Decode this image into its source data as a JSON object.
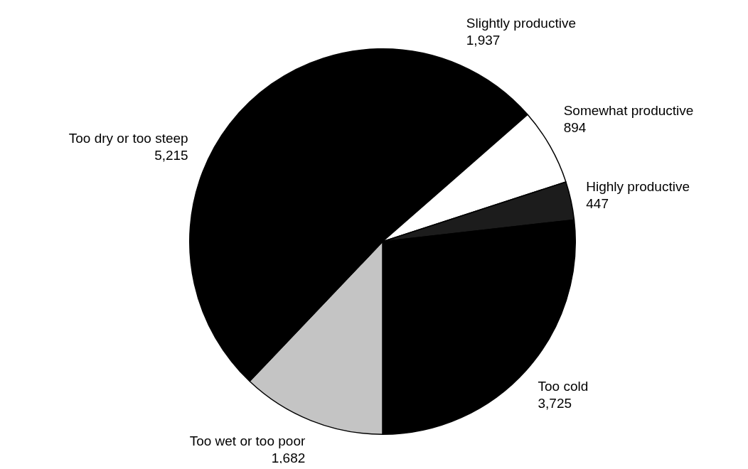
{
  "chart_data": {
    "type": "pie",
    "categories": [
      "Slightly productive",
      "Somewhat productive",
      "Highly productive",
      "Too cold",
      "Too wet or too poor",
      "Too dry or too steep"
    ],
    "values": [
      1937,
      894,
      447,
      3725,
      1682,
      5215
    ],
    "colors": [
      "#000000",
      "#ffffff",
      "#1c1c1c",
      "#000000",
      "#c4c4c4",
      "#000000"
    ],
    "value_labels": [
      "1,937",
      "894",
      "447",
      "3,725",
      "1,682",
      "5,215"
    ],
    "legend": false
  }
}
